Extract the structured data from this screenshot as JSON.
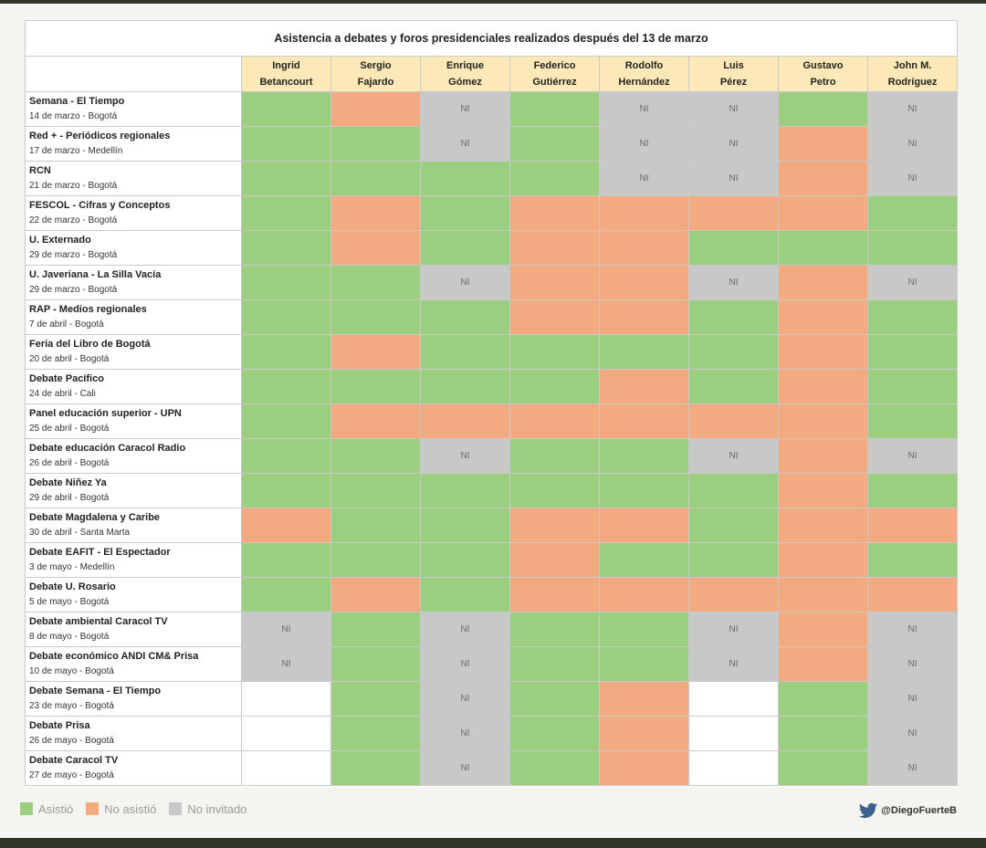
{
  "chart_data": {
    "type": "table",
    "title": "Asistencia a debates y foros presidenciales realizados después del 13 de marzo",
    "candidates": [
      [
        "Ingrid",
        "Betancourt"
      ],
      [
        "Sergio",
        "Fajardo"
      ],
      [
        "Enrique",
        "Gómez"
      ],
      [
        "Federico",
        "Gutiérrez"
      ],
      [
        "Rodolfo",
        "Hernández"
      ],
      [
        "Luis",
        "Pérez"
      ],
      [
        "Gustavo",
        "Petro"
      ],
      [
        "John M.",
        "Rodríguez"
      ]
    ],
    "events": [
      {
        "name": "Semana - El Tiempo",
        "detail": "14 de marzo - Bogotá",
        "status": [
          "A",
          "N",
          "I",
          "A",
          "I",
          "I",
          "A",
          "I"
        ]
      },
      {
        "name": "Red + - Periódicos regionales",
        "detail": "17 de marzo - Medellín",
        "status": [
          "A",
          "A",
          "I",
          "A",
          "I",
          "I",
          "N",
          "I"
        ]
      },
      {
        "name": "RCN",
        "detail": "21 de marzo - Bogotá",
        "status": [
          "A",
          "A",
          "A",
          "A",
          "I",
          "I",
          "N",
          "I"
        ]
      },
      {
        "name": "FESCOL - Cifras y Conceptos",
        "detail": "22 de marzo - Bogotá",
        "status": [
          "A",
          "N",
          "A",
          "N",
          "N",
          "N",
          "N",
          "A"
        ]
      },
      {
        "name": "U. Externado",
        "detail": "29 de marzo - Bogotá",
        "status": [
          "A",
          "N",
          "A",
          "N",
          "N",
          "A",
          "A",
          "A"
        ]
      },
      {
        "name": "U. Javeriana - La Silla Vacía",
        "detail": "29 de marzo - Bogotá",
        "status": [
          "A",
          "A",
          "I",
          "N",
          "N",
          "I",
          "N",
          "I"
        ]
      },
      {
        "name": "RAP - Medios regionales",
        "detail": "7 de abril - Bogotá",
        "status": [
          "A",
          "A",
          "A",
          "N",
          "N",
          "A",
          "N",
          "A"
        ]
      },
      {
        "name": "Feria del Libro de Bogotá",
        "detail": "20 de abril - Bogotá",
        "status": [
          "A",
          "N",
          "A",
          "A",
          "A",
          "A",
          "N",
          "A"
        ]
      },
      {
        "name": "Debate Pacífico",
        "detail": "24 de abril - Cali",
        "status": [
          "A",
          "A",
          "A",
          "A",
          "N",
          "A",
          "N",
          "A"
        ]
      },
      {
        "name": "Panel educación superior - UPN",
        "detail": "25 de abril - Bogotá",
        "status": [
          "A",
          "N",
          "N",
          "N",
          "N",
          "N",
          "N",
          "A"
        ]
      },
      {
        "name": "Debate educación Caracol Radio",
        "detail": "26 de abril - Bogotá",
        "status": [
          "A",
          "A",
          "I",
          "A",
          "A",
          "I",
          "N",
          "I"
        ]
      },
      {
        "name": "Debate Niñez Ya",
        "detail": "29 de abril - Bogotá",
        "status": [
          "A",
          "A",
          "A",
          "A",
          "A",
          "A",
          "N",
          "A"
        ]
      },
      {
        "name": "Debate Magdalena y Caribe",
        "detail": "30 de abril - Santa Marta",
        "status": [
          "N",
          "A",
          "A",
          "N",
          "N",
          "A",
          "N",
          "N"
        ]
      },
      {
        "name": "Debate EAFIT - El Espectador",
        "detail": "3 de mayo - Medellín",
        "status": [
          "A",
          "A",
          "A",
          "N",
          "A",
          "A",
          "N",
          "A"
        ]
      },
      {
        "name": "Debate U. Rosario",
        "detail": "5 de mayo - Bogotá",
        "status": [
          "A",
          "N",
          "A",
          "N",
          "N",
          "N",
          "N",
          "N"
        ]
      },
      {
        "name": "Debate ambiental Caracol TV",
        "detail": "8 de mayo - Bogotá",
        "status": [
          "I",
          "A",
          "I",
          "A",
          "A",
          "I",
          "N",
          "I"
        ]
      },
      {
        "name": "Debate económico ANDI CM& Prisa",
        "detail": "10 de mayo - Bogotá",
        "status": [
          "I",
          "A",
          "I",
          "A",
          "A",
          "I",
          "N",
          "I"
        ]
      },
      {
        "name": "Debate Semana - El Tiempo",
        "detail": "23 de mayo - Bogotá",
        "status": [
          "E",
          "A",
          "I",
          "A",
          "N",
          "E",
          "A",
          "I"
        ]
      },
      {
        "name": "Debate Prisa",
        "detail": "26 de mayo - Bogotá",
        "status": [
          "E",
          "A",
          "I",
          "A",
          "N",
          "E",
          "A",
          "I"
        ]
      },
      {
        "name": "Debate Caracol TV",
        "detail": "27 de mayo - Bogotá",
        "status": [
          "E",
          "A",
          "I",
          "A",
          "N",
          "E",
          "A",
          "I"
        ]
      }
    ],
    "cell_text": {
      "A": "",
      "N": "",
      "I": "NI",
      "E": ""
    },
    "colors": {
      "A": "#9bcf7f",
      "N": "#f4aa81",
      "I": "#c8c8c8",
      "E": "#ffffff"
    },
    "legend": [
      {
        "key": "A",
        "label": "Asistió"
      },
      {
        "key": "N",
        "label": "No asistió"
      },
      {
        "key": "I",
        "label": "No invitado"
      }
    ]
  },
  "credit": {
    "handle": "@DiegoFuerteB",
    "icon": "twitter-bird-icon"
  }
}
